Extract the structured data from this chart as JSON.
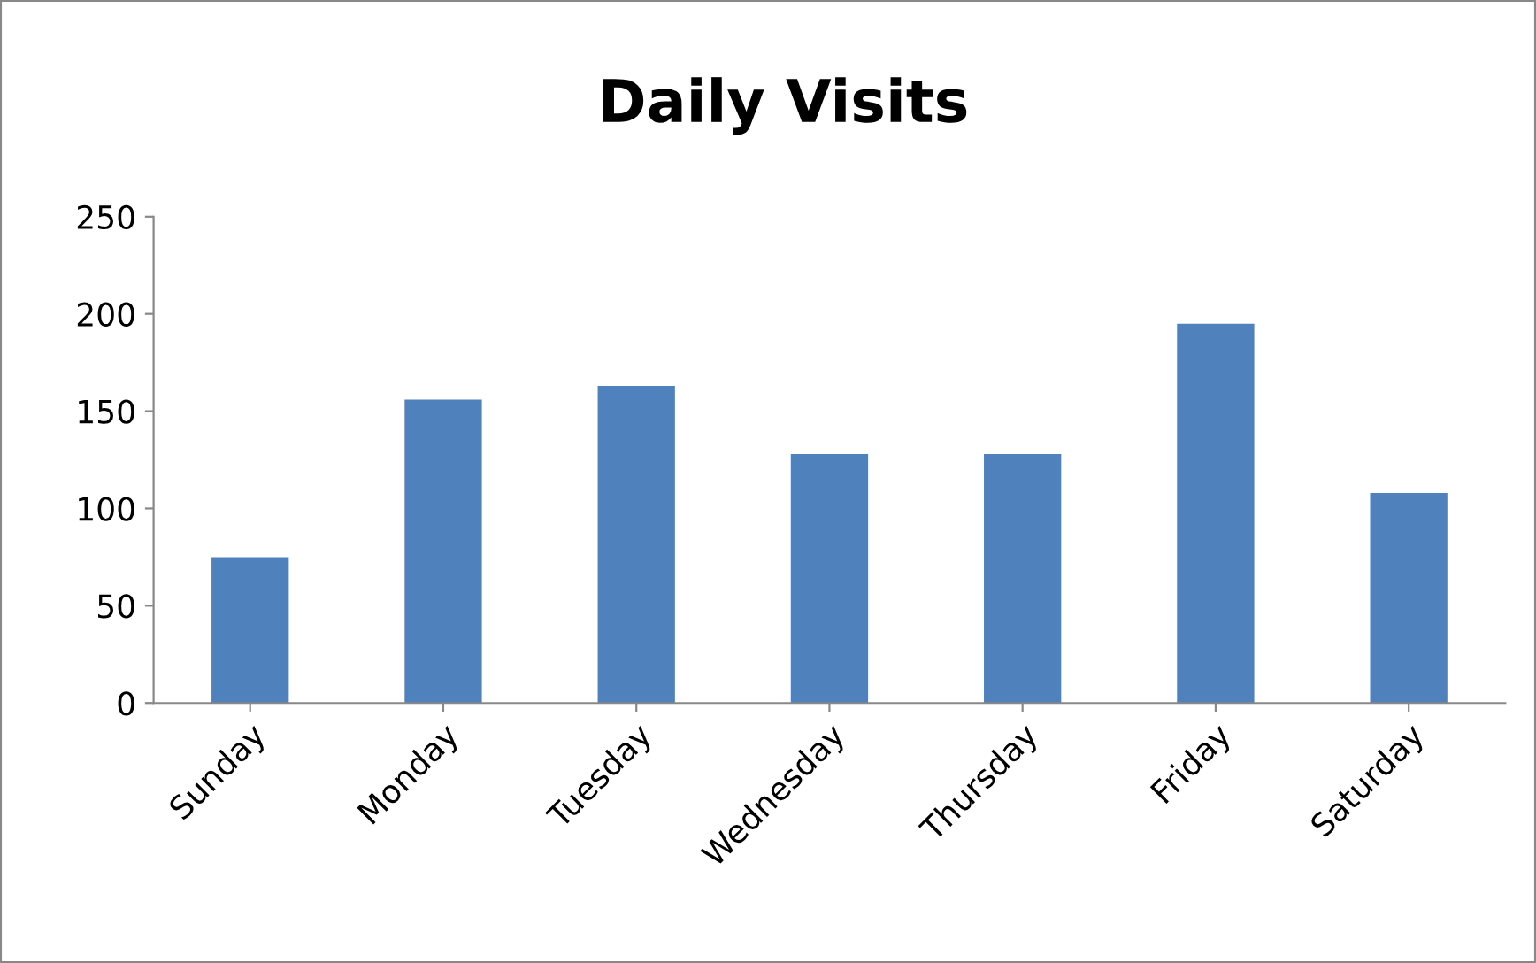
{
  "chart_data": {
    "type": "bar",
    "title": "Daily Visits",
    "categories": [
      "Sunday",
      "Monday",
      "Tuesday",
      "Wednesday",
      "Thursday",
      "Friday",
      "Saturday"
    ],
    "values": [
      75,
      156,
      163,
      128,
      128,
      195,
      108
    ],
    "color": "#4f81bd",
    "ylim": [
      0,
      250
    ],
    "yticks": [
      0,
      50,
      100,
      150,
      200,
      250
    ],
    "grid": false,
    "legend": false
  }
}
